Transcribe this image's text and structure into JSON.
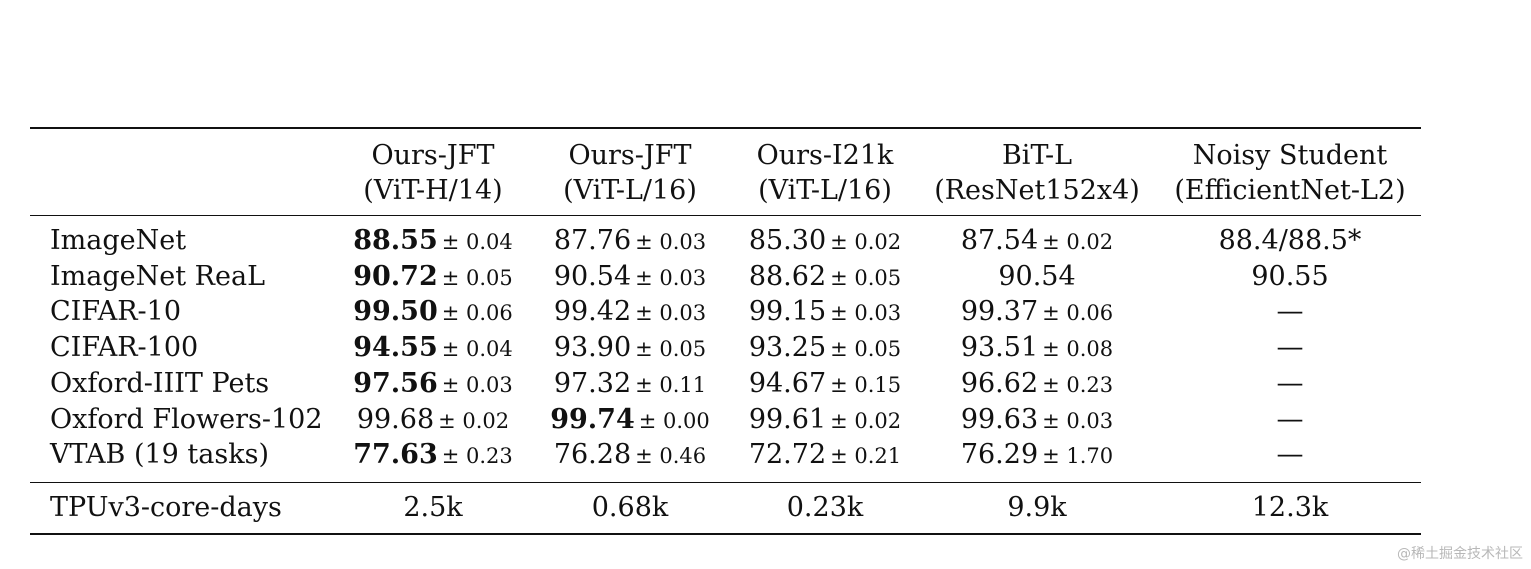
{
  "columns": [
    {
      "line1": "Ours-JFT",
      "line2": "(ViT-H/14)"
    },
    {
      "line1": "Ours-JFT",
      "line2": "(ViT-L/16)"
    },
    {
      "line1": "Ours-I21k",
      "line2": "(ViT-L/16)"
    },
    {
      "line1": "BiT-L",
      "line2": "(ResNet152x4)"
    },
    {
      "line1": "Noisy Student",
      "line2": "(EfficientNet-L2)"
    }
  ],
  "rows": [
    {
      "label": "ImageNet",
      "cells": [
        {
          "v": "88.55",
          "pm": "± 0.04",
          "bold": true
        },
        {
          "v": "87.76",
          "pm": "± 0.03"
        },
        {
          "v": "85.30",
          "pm": "± 0.02"
        },
        {
          "v": "87.54",
          "pm": "± 0.02"
        },
        {
          "v": "88.4/88.5*",
          "pm": ""
        }
      ]
    },
    {
      "label": "ImageNet ReaL",
      "cells": [
        {
          "v": "90.72",
          "pm": "± 0.05",
          "bold": true
        },
        {
          "v": "90.54",
          "pm": "± 0.03"
        },
        {
          "v": "88.62",
          "pm": "± 0.05"
        },
        {
          "v": "90.54",
          "pm": ""
        },
        {
          "v": "90.55",
          "pm": ""
        }
      ]
    },
    {
      "label": "CIFAR-10",
      "cells": [
        {
          "v": "99.50",
          "pm": "± 0.06",
          "bold": true
        },
        {
          "v": "99.42",
          "pm": "± 0.03"
        },
        {
          "v": "99.15",
          "pm": "± 0.03"
        },
        {
          "v": "99.37",
          "pm": "± 0.06"
        },
        {
          "v": "—",
          "pm": ""
        }
      ]
    },
    {
      "label": "CIFAR-100",
      "cells": [
        {
          "v": "94.55",
          "pm": "± 0.04",
          "bold": true
        },
        {
          "v": "93.90",
          "pm": "± 0.05"
        },
        {
          "v": "93.25",
          "pm": "± 0.05"
        },
        {
          "v": "93.51",
          "pm": "± 0.08"
        },
        {
          "v": "—",
          "pm": ""
        }
      ]
    },
    {
      "label": "Oxford-IIIT Pets",
      "cells": [
        {
          "v": "97.56",
          "pm": "± 0.03",
          "bold": true
        },
        {
          "v": "97.32",
          "pm": "± 0.11"
        },
        {
          "v": "94.67",
          "pm": "± 0.15"
        },
        {
          "v": "96.62",
          "pm": "± 0.23"
        },
        {
          "v": "—",
          "pm": ""
        }
      ]
    },
    {
      "label": "Oxford Flowers-102",
      "cells": [
        {
          "v": "99.68",
          "pm": "± 0.02"
        },
        {
          "v": "99.74",
          "pm": "± 0.00",
          "bold": true
        },
        {
          "v": "99.61",
          "pm": "± 0.02"
        },
        {
          "v": "99.63",
          "pm": "± 0.03"
        },
        {
          "v": "—",
          "pm": ""
        }
      ]
    },
    {
      "label": "VTAB (19 tasks)",
      "cells": [
        {
          "v": "77.63",
          "pm": "± 0.23",
          "bold": true
        },
        {
          "v": "76.28",
          "pm": "± 0.46"
        },
        {
          "v": "72.72",
          "pm": "± 0.21"
        },
        {
          "v": "76.29",
          "pm": "± 1.70"
        },
        {
          "v": "—",
          "pm": ""
        }
      ]
    }
  ],
  "footer_row": {
    "label": "TPUv3-core-days",
    "cells": [
      "2.5k",
      "0.68k",
      "0.23k",
      "9.9k",
      "12.3k"
    ]
  },
  "watermark": "@稀土掘金技术社区"
}
